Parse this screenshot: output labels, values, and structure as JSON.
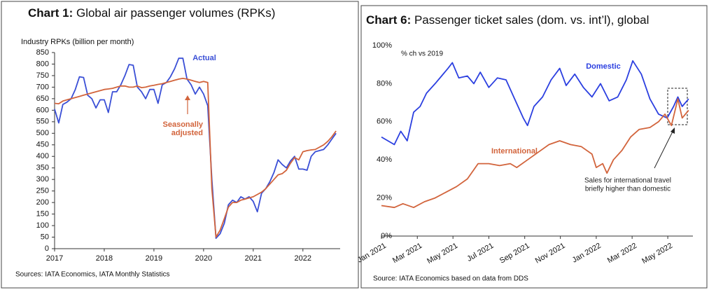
{
  "chart_data": [
    {
      "type": "line",
      "title_prefix": "Chart 1:",
      "title": "Global air passenger volumes (RPKs)",
      "ylabel": "Industry RPKs (billion per month)",
      "source": "Sources: IATA Economics, IATA Monthly Statistics",
      "x": [
        2017.0,
        2017.083,
        2017.167,
        2017.25,
        2017.333,
        2017.417,
        2017.5,
        2017.583,
        2017.667,
        2017.75,
        2017.833,
        2017.917,
        2018.0,
        2018.083,
        2018.167,
        2018.25,
        2018.333,
        2018.417,
        2018.5,
        2018.583,
        2018.667,
        2018.75,
        2018.833,
        2018.917,
        2019.0,
        2019.083,
        2019.167,
        2019.25,
        2019.333,
        2019.417,
        2019.5,
        2019.583,
        2019.667,
        2019.75,
        2019.833,
        2019.917,
        2020.0,
        2020.083,
        2020.167,
        2020.25,
        2020.333,
        2020.417,
        2020.5,
        2020.583,
        2020.667,
        2020.75,
        2020.833,
        2020.917,
        2021.0,
        2021.083,
        2021.167,
        2021.25,
        2021.333,
        2021.417,
        2021.5,
        2021.583,
        2021.667,
        2021.75,
        2021.833,
        2021.917,
        2022.0,
        2022.083,
        2022.167,
        2022.25,
        2022.333,
        2022.417,
        2022.5,
        2022.583,
        2022.667
      ],
      "series": [
        {
          "name": "Actual",
          "color": "#3a4fd6",
          "values": [
            605,
            545,
            625,
            635,
            650,
            690,
            745,
            742,
            665,
            650,
            610,
            645,
            645,
            590,
            680,
            680,
            710,
            750,
            798,
            795,
            700,
            680,
            650,
            690,
            690,
            630,
            710,
            720,
            745,
            780,
            825,
            825,
            735,
            710,
            670,
            700,
            670,
            620,
            300,
            45,
            65,
            110,
            190,
            210,
            200,
            225,
            215,
            225,
            205,
            160,
            240,
            260,
            290,
            330,
            385,
            365,
            350,
            380,
            400,
            345,
            345,
            340,
            400,
            420,
            425,
            430,
            450,
            475,
            500
          ]
        },
        {
          "name": "Seasonally adjusted",
          "color": "#d2643c",
          "values": [
            630,
            628,
            640,
            645,
            650,
            655,
            660,
            665,
            670,
            675,
            680,
            685,
            690,
            692,
            695,
            700,
            705,
            705,
            700,
            700,
            705,
            698,
            700,
            705,
            708,
            712,
            715,
            720,
            725,
            730,
            735,
            738,
            735,
            730,
            725,
            720,
            725,
            720,
            260,
            50,
            80,
            130,
            180,
            200,
            200,
            210,
            215,
            220,
            225,
            235,
            245,
            260,
            280,
            300,
            320,
            325,
            340,
            370,
            395,
            385,
            420,
            425,
            428,
            430,
            440,
            450,
            465,
            485,
            510
          ]
        }
      ],
      "annotations": [
        {
          "lines": [
            "Actual"
          ],
          "color": "#3a4fd6"
        },
        {
          "lines": [
            "Seasonally",
            "adjusted"
          ],
          "color": "#d2643c"
        }
      ],
      "xlim": [
        2017,
        2022.75
      ],
      "xticks": [
        2017,
        2018,
        2019,
        2020,
        2021,
        2022
      ],
      "ylim": [
        0,
        850
      ],
      "yticks": [
        0,
        50,
        100,
        150,
        200,
        250,
        300,
        350,
        400,
        450,
        500,
        550,
        600,
        650,
        700,
        750,
        800,
        850
      ],
      "grid": false
    },
    {
      "type": "line",
      "title_prefix": "Chart 6:",
      "title": "Passenger ticket sales (dom. vs. int’l), global",
      "ylabel": "% ch vs 2019",
      "source": "Source: IATA Economics based on data from DDS",
      "series": [
        {
          "name": "Domestic",
          "color": "#2b3fe0",
          "x": [
            2021.0,
            2021.03,
            2021.06,
            2021.09,
            2021.12,
            2021.15,
            2021.18,
            2021.21,
            2021.25,
            2021.28,
            2021.31,
            2021.33,
            2021.36,
            2021.4,
            2021.43,
            2021.46,
            2021.5,
            2021.54,
            2021.58,
            2021.62,
            2021.66,
            2021.68,
            2021.71,
            2021.75,
            2021.79,
            2021.83,
            2021.86,
            2021.9,
            2021.94,
            2021.98,
            2022.02,
            2022.06,
            2022.1,
            2022.14,
            2022.17,
            2022.21,
            2022.25,
            2022.29,
            2022.33,
            2022.36,
            2022.38,
            2022.4,
            2022.43
          ],
          "values": [
            52,
            50,
            48,
            55,
            50,
            65,
            68,
            75,
            80,
            84,
            88,
            91,
            83,
            84,
            80,
            86,
            78,
            83,
            82,
            72,
            62,
            58,
            68,
            73,
            82,
            88,
            79,
            85,
            78,
            73,
            80,
            71,
            73,
            82,
            92,
            85,
            72,
            64,
            62,
            68,
            73,
            68,
            72
          ]
        },
        {
          "name": "International",
          "color": "#d2643c",
          "x": [
            2021.0,
            2021.06,
            2021.1,
            2021.15,
            2021.2,
            2021.25,
            2021.3,
            2021.35,
            2021.4,
            2021.45,
            2021.5,
            2021.55,
            2021.6,
            2021.63,
            2021.68,
            2021.73,
            2021.78,
            2021.83,
            2021.88,
            2021.93,
            2021.98,
            2022.0,
            2022.03,
            2022.05,
            2022.08,
            2022.12,
            2022.16,
            2022.2,
            2022.25,
            2022.29,
            2022.32,
            2022.35,
            2022.38,
            2022.4,
            2022.43
          ],
          "values": [
            16,
            15,
            17,
            15,
            18,
            20,
            23,
            26,
            30,
            38,
            38,
            37,
            38,
            36,
            40,
            44,
            48,
            50,
            48,
            47,
            43,
            36,
            38,
            33,
            40,
            45,
            52,
            56,
            57,
            60,
            64,
            58,
            72,
            62,
            66
          ]
        }
      ],
      "annotations": [
        {
          "lines": [
            "Domestic"
          ],
          "color": "#2b3fe0"
        },
        {
          "lines": [
            "International"
          ],
          "color": "#d2643c"
        },
        {
          "lines": [
            "Sales for international travel",
            "briefly higher than domestic"
          ],
          "color": "#222222"
        }
      ],
      "xlim": [
        2021,
        2022.45
      ],
      "xticks": [
        {
          "value": 2021.0,
          "label": "Jan 2021"
        },
        {
          "value": 2021.167,
          "label": "Mar 2021"
        },
        {
          "value": 2021.333,
          "label": "May 2021"
        },
        {
          "value": 2021.5,
          "label": "Jul 2021"
        },
        {
          "value": 2021.667,
          "label": "Sep 2021"
        },
        {
          "value": 2021.833,
          "label": "Nov 2021"
        },
        {
          "value": 2022.0,
          "label": "Jan 2022"
        },
        {
          "value": 2022.167,
          "label": "Mar 2022"
        },
        {
          "value": 2022.333,
          "label": "May 2022"
        }
      ],
      "ylim": [
        0,
        100
      ],
      "yticks": [
        {
          "value": 0,
          "label": "0%"
        },
        {
          "value": 20,
          "label": "20%"
        },
        {
          "value": 40,
          "label": "40%"
        },
        {
          "value": 60,
          "label": "60%"
        },
        {
          "value": 80,
          "label": "80%"
        },
        {
          "value": 100,
          "label": "100%"
        }
      ],
      "grid": false
    }
  ]
}
